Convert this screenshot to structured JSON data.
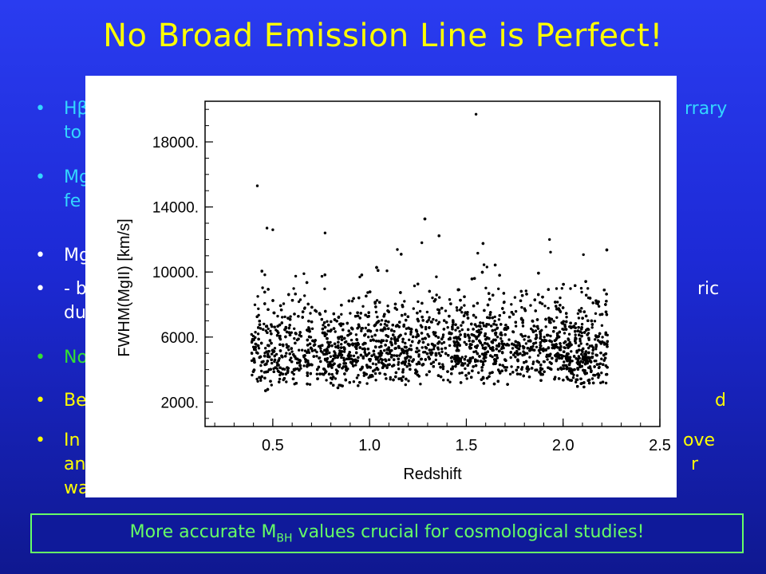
{
  "slide": {
    "title": "No Broad Emission Line is Perfect!",
    "bullets": [
      {
        "line1": "Hβ",
        "line1_tail": "rrary",
        "line2": "to",
        "color": "cyan"
      },
      {
        "line1": "Mg",
        "line2": "fe",
        "color": "cyan"
      },
      {
        "line1": "Mg",
        "color": "white"
      },
      {
        "line1": "- b",
        "line1_tail": "ric",
        "line2": "du",
        "color": "white"
      },
      {
        "line1": "No",
        "color": "green"
      },
      {
        "line1": "Be",
        "line1_tail": "d",
        "color": "yellow"
      },
      {
        "line1": "In",
        "line1_tail": "ove",
        "line2": "an",
        "line2_tail": "r",
        "line3": "way)",
        "color": "yellow"
      }
    ],
    "footer": {
      "text_before": "More accurate M",
      "subscript": "BH",
      "text_after": " values crucial for cosmological studies!"
    },
    "colors": {
      "cyan": "#33d6ff",
      "white": "#ffffff",
      "green": "#33e033",
      "yellow": "#ffff00",
      "footer": "#66ff66"
    }
  },
  "chart_data": {
    "type": "scatter",
    "xlabel": "Redshift",
    "ylabel": "FWHM(MgII) [km/s]",
    "xlim": [
      0.15,
      2.5
    ],
    "ylim": [
      500,
      20500
    ],
    "xticks": [
      {
        "value": 0.5,
        "label": "0.5"
      },
      {
        "value": 1.0,
        "label": "1.0"
      },
      {
        "value": 1.5,
        "label": "1.5"
      },
      {
        "value": 2.0,
        "label": "2.0"
      },
      {
        "value": 2.5,
        "label": "2.5"
      }
    ],
    "yticks": [
      {
        "value": 2000,
        "label": "2000."
      },
      {
        "value": 6000,
        "label": "6000."
      },
      {
        "value": 10000,
        "label": "10000."
      },
      {
        "value": 14000,
        "label": "14000."
      },
      {
        "value": 18000,
        "label": "18000."
      }
    ],
    "distribution": {
      "x_range": [
        0.39,
        2.23
      ],
      "y_min": 1900,
      "y_typical": [
        2000,
        8500
      ],
      "n_points": 5200
    },
    "outliers": [
      {
        "x": 0.42,
        "y": 15300
      },
      {
        "x": 0.47,
        "y": 12700
      },
      {
        "x": 0.5,
        "y": 12600
      },
      {
        "x": 0.77,
        "y": 12400
      },
      {
        "x": 1.27,
        "y": 11800
      },
      {
        "x": 1.55,
        "y": 19700
      },
      {
        "x": 1.93,
        "y": 12000
      }
    ]
  }
}
